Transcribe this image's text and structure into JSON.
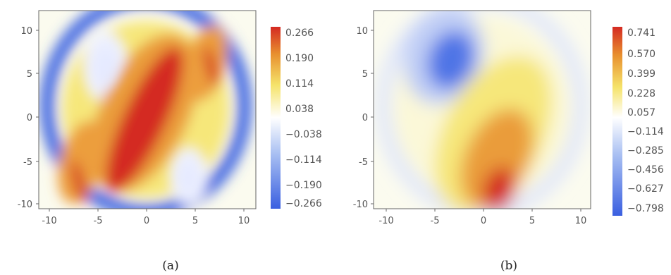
{
  "chart_data": [
    {
      "type": "heatmap",
      "caption": "(a)",
      "x_ticks": [
        -10,
        -5,
        0,
        5,
        10
      ],
      "y_ticks": [
        10,
        5,
        0,
        -5,
        -10
      ],
      "xlim": [
        -12.5,
        12.5
      ],
      "ylim": [
        -12.5,
        12.5
      ],
      "colorbar": {
        "ticks": [
          "0.266",
          "0.190",
          "0.114",
          "0.038",
          "−0.038",
          "−0.114",
          "−0.190",
          "−0.266"
        ],
        "range": [
          -0.266,
          0.266
        ],
        "colors": [
          "#3a5fe0",
          "#ffffff",
          "#f5e36a",
          "#e8902f",
          "#d42a22"
        ]
      },
      "features": [
        {
          "x": 0,
          "y": -1,
          "value": 0.266
        },
        {
          "x": -6.5,
          "y": -6,
          "value": 0.266
        },
        {
          "x": 7,
          "y": 6,
          "value": 0.266
        },
        {
          "x": -4.5,
          "y": 5.5,
          "value": -0.038
        },
        {
          "x": 5,
          "y": -6,
          "value": -0.038
        },
        {
          "x": 0,
          "y": 0,
          "r": 11.5,
          "value": -0.266
        }
      ]
    },
    {
      "type": "heatmap",
      "caption": "(b)",
      "x_ticks": [
        -10,
        -5,
        0,
        5,
        10
      ],
      "y_ticks": [
        10,
        5,
        0,
        -5,
        -10
      ],
      "xlim": [
        -12.5,
        12.5
      ],
      "ylim": [
        -12.5,
        12.5
      ],
      "colorbar": {
        "ticks": [
          "0.741",
          "0.570",
          "0.399",
          "0.228",
          "0.057",
          "−0.114",
          "−0.285",
          "−0.456",
          "−0.627",
          "−0.798"
        ],
        "range": [
          -0.798,
          0.741
        ],
        "colors": [
          "#3a5fe0",
          "#ffffff",
          "#f5e36a",
          "#e8902f",
          "#d42a22"
        ]
      },
      "features": [
        {
          "x": 1.5,
          "y": -7,
          "value": 0.741
        },
        {
          "x": 3,
          "y": -1,
          "value": 0.228
        },
        {
          "x": -3.5,
          "y": 6,
          "value": -0.798
        },
        {
          "x": 0,
          "y": 0,
          "r": 11.5,
          "value": -0.114
        }
      ]
    }
  ]
}
